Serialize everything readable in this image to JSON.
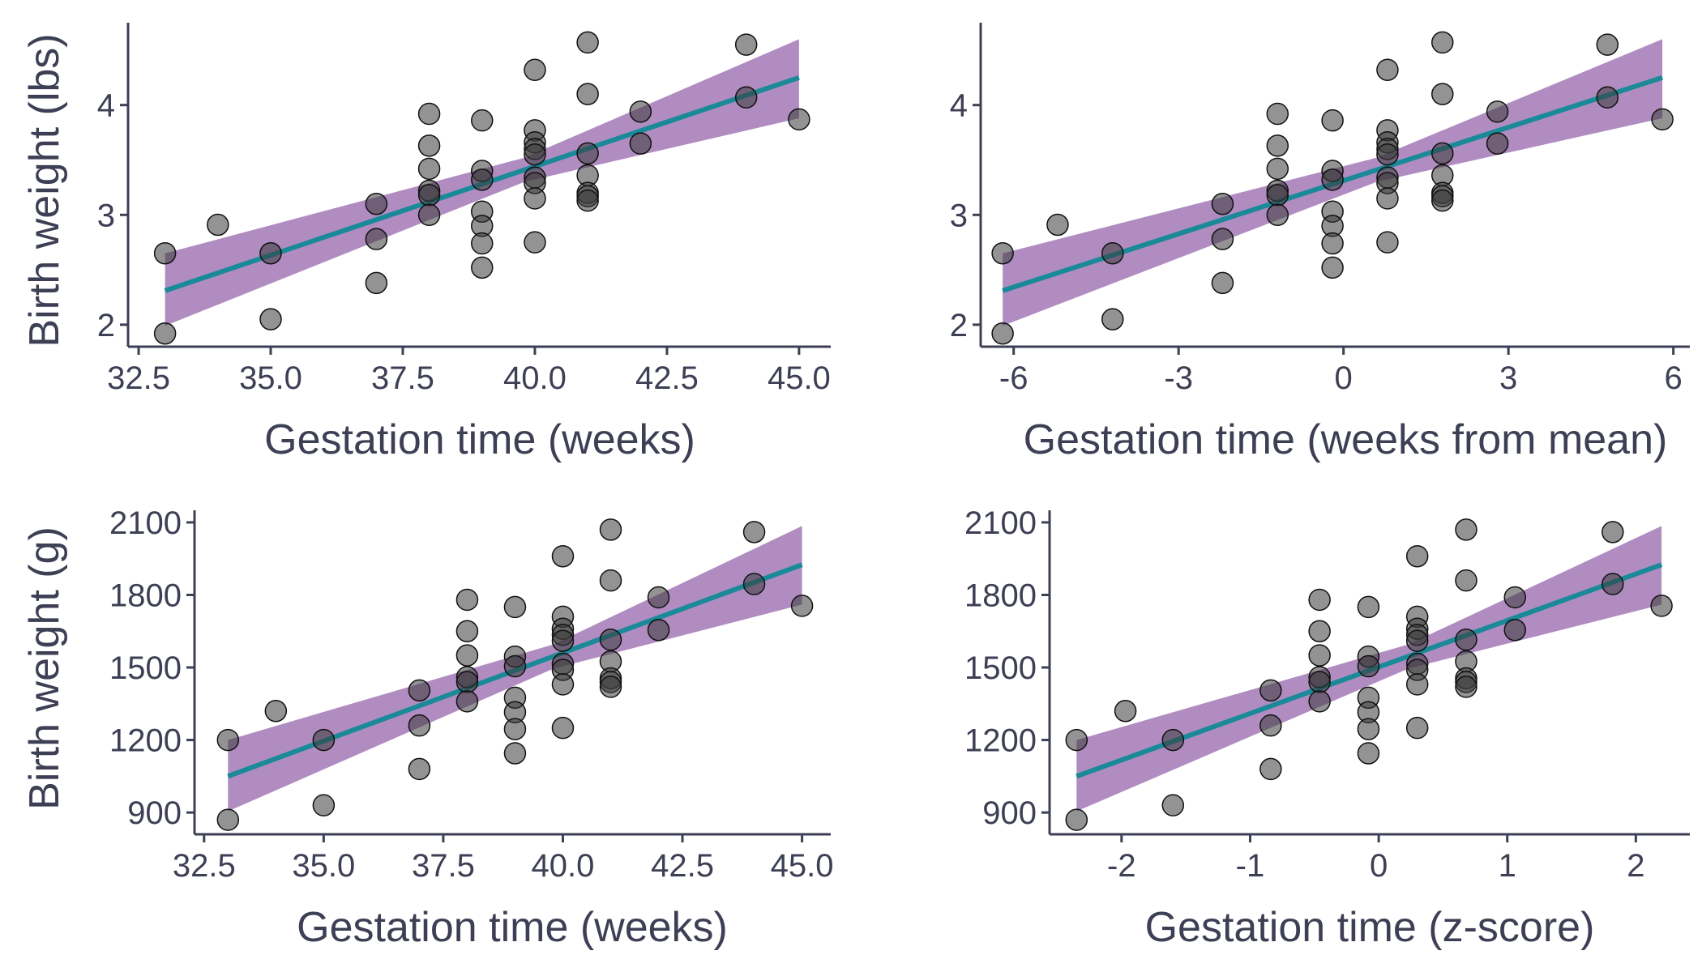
{
  "colors": {
    "axis": "#3d3f54",
    "ci_band": "#8e5ba6",
    "ci_band_opacity": 0.7,
    "fit_line": "#1a8a98",
    "point_fill": "#3a3a3a",
    "point_fill_opacity": 0.55,
    "point_stroke": "#111111"
  },
  "chart_data": [
    {
      "id": "panel-1",
      "type": "scatter",
      "title": "",
      "xlabel": "Gestation time (weeks)",
      "ylabel": "Birth weight (lbs)",
      "xlim": [
        32.3,
        45.6
      ],
      "ylim": [
        1.8,
        4.75
      ],
      "xticks": [
        32.5,
        35.0,
        37.5,
        40.0,
        42.5,
        45.0
      ],
      "xtick_labels": [
        "32.5",
        "35.0",
        "37.5",
        "40.0",
        "42.5",
        "45.0"
      ],
      "yticks": [
        2,
        3,
        4
      ],
      "ytick_labels": [
        "2",
        "3",
        "4"
      ],
      "points": [
        [
          33,
          2.65
        ],
        [
          33,
          1.92
        ],
        [
          34,
          2.91
        ],
        [
          35,
          2.65
        ],
        [
          35,
          2.05
        ],
        [
          37,
          3.1
        ],
        [
          37,
          2.78
        ],
        [
          37,
          2.38
        ],
        [
          38,
          3.92
        ],
        [
          38,
          3.63
        ],
        [
          38,
          3.42
        ],
        [
          38,
          3.22
        ],
        [
          38,
          3.18
        ],
        [
          38,
          3.0
        ],
        [
          39,
          3.86
        ],
        [
          39,
          3.4
        ],
        [
          39,
          3.32
        ],
        [
          39,
          3.03
        ],
        [
          39,
          2.9
        ],
        [
          39,
          2.74
        ],
        [
          39,
          2.52
        ],
        [
          40,
          4.32
        ],
        [
          40,
          3.77
        ],
        [
          40,
          3.66
        ],
        [
          40,
          3.6
        ],
        [
          40,
          3.55
        ],
        [
          40,
          3.34
        ],
        [
          40,
          3.29
        ],
        [
          40,
          3.15
        ],
        [
          40,
          2.75
        ],
        [
          41,
          4.57
        ],
        [
          41,
          4.1
        ],
        [
          41,
          3.56
        ],
        [
          41,
          3.36
        ],
        [
          41,
          3.2
        ],
        [
          41,
          3.17
        ],
        [
          41,
          3.13
        ],
        [
          42,
          3.94
        ],
        [
          42,
          3.65
        ],
        [
          44,
          4.55
        ],
        [
          44,
          4.07
        ],
        [
          45,
          3.87
        ]
      ],
      "fit": {
        "x": [
          33,
          45
        ],
        "y": [
          2.31,
          4.25
        ]
      },
      "ci": {
        "x": [
          33,
          39.8,
          45
        ],
        "lower": [
          1.99,
          3.3,
          3.88
        ],
        "upper": [
          2.65,
          3.52,
          4.6
        ]
      }
    },
    {
      "id": "panel-2",
      "type": "scatter",
      "title": "",
      "xlabel": "Gestation time (weeks from mean)",
      "ylabel": "",
      "xlim": [
        -6.6,
        6.3
      ],
      "ylim": [
        1.8,
        4.75
      ],
      "xticks": [
        -6,
        -3,
        0,
        3,
        6
      ],
      "xtick_labels": [
        "-6",
        "-3",
        "0",
        "3",
        "6"
      ],
      "yticks": [
        2,
        3,
        4
      ],
      "ytick_labels": [
        "2",
        "3",
        "4"
      ],
      "points": [
        [
          -6.2,
          2.65
        ],
        [
          -6.2,
          1.92
        ],
        [
          -5.2,
          2.91
        ],
        [
          -4.2,
          2.65
        ],
        [
          -4.2,
          2.05
        ],
        [
          -2.2,
          3.1
        ],
        [
          -2.2,
          2.78
        ],
        [
          -2.2,
          2.38
        ],
        [
          -1.2,
          3.92
        ],
        [
          -1.2,
          3.63
        ],
        [
          -1.2,
          3.42
        ],
        [
          -1.2,
          3.22
        ],
        [
          -1.2,
          3.18
        ],
        [
          -1.2,
          3.0
        ],
        [
          -0.2,
          3.86
        ],
        [
          -0.2,
          3.4
        ],
        [
          -0.2,
          3.32
        ],
        [
          -0.2,
          3.03
        ],
        [
          -0.2,
          2.9
        ],
        [
          -0.2,
          2.74
        ],
        [
          -0.2,
          2.52
        ],
        [
          0.8,
          4.32
        ],
        [
          0.8,
          3.77
        ],
        [
          0.8,
          3.66
        ],
        [
          0.8,
          3.6
        ],
        [
          0.8,
          3.55
        ],
        [
          0.8,
          3.34
        ],
        [
          0.8,
          3.29
        ],
        [
          0.8,
          3.15
        ],
        [
          0.8,
          2.75
        ],
        [
          1.8,
          4.57
        ],
        [
          1.8,
          4.1
        ],
        [
          1.8,
          3.56
        ],
        [
          1.8,
          3.36
        ],
        [
          1.8,
          3.2
        ],
        [
          1.8,
          3.17
        ],
        [
          1.8,
          3.13
        ],
        [
          2.8,
          3.94
        ],
        [
          2.8,
          3.65
        ],
        [
          4.8,
          4.55
        ],
        [
          4.8,
          4.07
        ],
        [
          5.8,
          3.87
        ]
      ],
      "fit": {
        "x": [
          -6.2,
          5.8
        ],
        "y": [
          2.31,
          4.25
        ]
      },
      "ci": {
        "x": [
          -6.2,
          0.6,
          5.8
        ],
        "lower": [
          1.99,
          3.3,
          3.88
        ],
        "upper": [
          2.65,
          3.52,
          4.6
        ]
      }
    },
    {
      "id": "panel-3",
      "type": "scatter",
      "title": "",
      "xlabel": "Gestation time (weeks)",
      "ylabel": "Birth weight (g)",
      "xlim": [
        32.3,
        45.6
      ],
      "ylim": [
        810,
        2150
      ],
      "xticks": [
        32.5,
        35.0,
        37.5,
        40.0,
        42.5,
        45.0
      ],
      "xtick_labels": [
        "32.5",
        "35.0",
        "37.5",
        "40.0",
        "42.5",
        "45.0"
      ],
      "yticks": [
        900,
        1200,
        1500,
        1800,
        2100
      ],
      "ytick_labels": [
        "900",
        "1200",
        "1500",
        "1800",
        "2100"
      ],
      "points": [
        [
          33,
          1200
        ],
        [
          33,
          870
        ],
        [
          34,
          1320
        ],
        [
          35,
          1200
        ],
        [
          35,
          930
        ],
        [
          37,
          1405
        ],
        [
          37,
          1260
        ],
        [
          37,
          1080
        ],
        [
          38,
          1780
        ],
        [
          38,
          1650
        ],
        [
          38,
          1550
        ],
        [
          38,
          1460
        ],
        [
          38,
          1440
        ],
        [
          38,
          1360
        ],
        [
          39,
          1750
        ],
        [
          39,
          1545
        ],
        [
          39,
          1505
        ],
        [
          39,
          1375
        ],
        [
          39,
          1315
        ],
        [
          39,
          1245
        ],
        [
          39,
          1145
        ],
        [
          40,
          1960
        ],
        [
          40,
          1710
        ],
        [
          40,
          1660
        ],
        [
          40,
          1635
        ],
        [
          40,
          1610
        ],
        [
          40,
          1515
        ],
        [
          40,
          1490
        ],
        [
          40,
          1430
        ],
        [
          40,
          1250
        ],
        [
          41,
          2070
        ],
        [
          41,
          1860
        ],
        [
          41,
          1615
        ],
        [
          41,
          1525
        ],
        [
          41,
          1455
        ],
        [
          41,
          1440
        ],
        [
          41,
          1420
        ],
        [
          42,
          1790
        ],
        [
          42,
          1655
        ],
        [
          44,
          2060
        ],
        [
          44,
          1845
        ],
        [
          45,
          1755
        ]
      ],
      "fit": {
        "x": [
          33,
          45
        ],
        "y": [
          1050,
          1925
        ]
      },
      "ci": {
        "x": [
          33,
          39.8,
          45
        ],
        "lower": [
          905,
          1495,
          1760
        ],
        "upper": [
          1200,
          1595,
          2085
        ]
      }
    },
    {
      "id": "panel-4",
      "type": "scatter",
      "title": "",
      "xlabel": "Gestation time (z-score)",
      "ylabel": "",
      "xlim": [
        -2.56,
        2.42
      ],
      "ylim": [
        810,
        2150
      ],
      "xticks": [
        -2,
        -1,
        0,
        1,
        2
      ],
      "xtick_labels": [
        "-2",
        "-1",
        "0",
        "1",
        "2"
      ],
      "yticks": [
        900,
        1200,
        1500,
        1800,
        2100
      ],
      "ytick_labels": [
        "900",
        "1200",
        "1500",
        "1800",
        "2100"
      ],
      "points": [
        [
          -2.35,
          1200
        ],
        [
          -2.35,
          870
        ],
        [
          -1.97,
          1320
        ],
        [
          -1.6,
          1200
        ],
        [
          -1.6,
          930
        ],
        [
          -0.84,
          1405
        ],
        [
          -0.84,
          1260
        ],
        [
          -0.84,
          1080
        ],
        [
          -0.46,
          1780
        ],
        [
          -0.46,
          1650
        ],
        [
          -0.46,
          1550
        ],
        [
          -0.46,
          1460
        ],
        [
          -0.46,
          1440
        ],
        [
          -0.46,
          1360
        ],
        [
          -0.08,
          1750
        ],
        [
          -0.08,
          1545
        ],
        [
          -0.08,
          1505
        ],
        [
          -0.08,
          1375
        ],
        [
          -0.08,
          1315
        ],
        [
          -0.08,
          1245
        ],
        [
          -0.08,
          1145
        ],
        [
          0.3,
          1960
        ],
        [
          0.3,
          1710
        ],
        [
          0.3,
          1660
        ],
        [
          0.3,
          1635
        ],
        [
          0.3,
          1610
        ],
        [
          0.3,
          1515
        ],
        [
          0.3,
          1490
        ],
        [
          0.3,
          1430
        ],
        [
          0.3,
          1250
        ],
        [
          0.68,
          2070
        ],
        [
          0.68,
          1860
        ],
        [
          0.68,
          1615
        ],
        [
          0.68,
          1525
        ],
        [
          0.68,
          1455
        ],
        [
          0.68,
          1440
        ],
        [
          0.68,
          1420
        ],
        [
          1.06,
          1790
        ],
        [
          1.06,
          1655
        ],
        [
          1.82,
          2060
        ],
        [
          1.82,
          1845
        ],
        [
          2.2,
          1755
        ]
      ],
      "fit": {
        "x": [
          -2.35,
          2.2
        ],
        "y": [
          1050,
          1925
        ]
      },
      "ci": {
        "x": [
          -2.35,
          0.23,
          2.2
        ],
        "lower": [
          905,
          1495,
          1760
        ],
        "upper": [
          1200,
          1595,
          2085
        ]
      }
    }
  ]
}
